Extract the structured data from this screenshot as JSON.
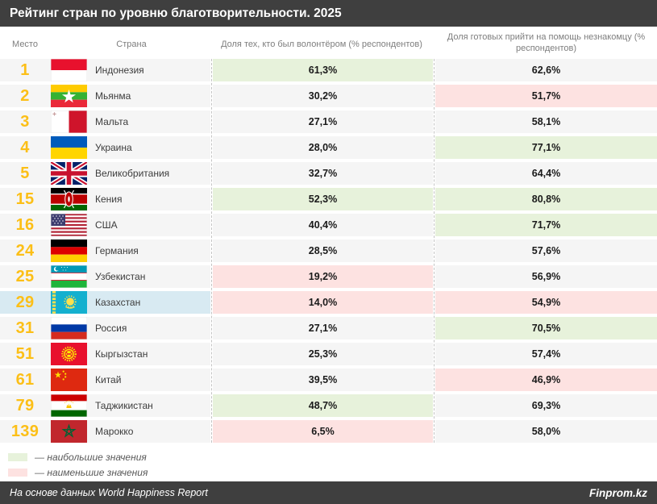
{
  "title": "Рейтинг стран по уровню благотворительности. 2025",
  "columns": {
    "rank": "Место",
    "country": "Страна",
    "volunteer": "Доля тех, кто был волонтёром (% респондентов)",
    "help": "Доля готовых прийти на помощь незнакомцу (% респондентов)"
  },
  "table": {
    "rows": [
      {
        "rank": "1",
        "country": "Индонезия",
        "flag": "indonesia",
        "volunteer": "61,3%",
        "volunteer_class": "high",
        "help": "62,6%",
        "help_class": "none",
        "highlight": false
      },
      {
        "rank": "2",
        "country": "Мьянма",
        "flag": "myanmar",
        "volunteer": "30,2%",
        "volunteer_class": "none",
        "help": "51,7%",
        "help_class": "low",
        "highlight": false
      },
      {
        "rank": "3",
        "country": "Мальта",
        "flag": "malta",
        "volunteer": "27,1%",
        "volunteer_class": "none",
        "help": "58,1%",
        "help_class": "none",
        "highlight": false
      },
      {
        "rank": "4",
        "country": "Украина",
        "flag": "ukraine",
        "volunteer": "28,0%",
        "volunteer_class": "none",
        "help": "77,1%",
        "help_class": "high",
        "highlight": false
      },
      {
        "rank": "5",
        "country": "Великобритания",
        "flag": "uk",
        "volunteer": "32,7%",
        "volunteer_class": "none",
        "help": "64,4%",
        "help_class": "none",
        "highlight": false
      },
      {
        "rank": "15",
        "country": "Кения",
        "flag": "kenya",
        "volunteer": "52,3%",
        "volunteer_class": "high",
        "help": "80,8%",
        "help_class": "high",
        "highlight": false
      },
      {
        "rank": "16",
        "country": "США",
        "flag": "usa",
        "volunteer": "40,4%",
        "volunteer_class": "none",
        "help": "71,7%",
        "help_class": "high",
        "highlight": false
      },
      {
        "rank": "24",
        "country": "Германия",
        "flag": "germany",
        "volunteer": "28,5%",
        "volunteer_class": "none",
        "help": "57,6%",
        "help_class": "none",
        "highlight": false
      },
      {
        "rank": "25",
        "country": "Узбекистан",
        "flag": "uzbekistan",
        "volunteer": "19,2%",
        "volunteer_class": "low",
        "help": "56,9%",
        "help_class": "none",
        "highlight": false
      },
      {
        "rank": "29",
        "country": "Казахстан",
        "flag": "kazakhstan",
        "volunteer": "14,0%",
        "volunteer_class": "low",
        "help": "54,9%",
        "help_class": "low",
        "highlight": true
      },
      {
        "rank": "31",
        "country": "Россия",
        "flag": "russia",
        "volunteer": "27,1%",
        "volunteer_class": "none",
        "help": "70,5%",
        "help_class": "high",
        "highlight": false
      },
      {
        "rank": "51",
        "country": "Кыргызстан",
        "flag": "kyrgyzstan",
        "volunteer": "25,3%",
        "volunteer_class": "none",
        "help": "57,4%",
        "help_class": "none",
        "highlight": false
      },
      {
        "rank": "61",
        "country": "Китай",
        "flag": "china",
        "volunteer": "39,5%",
        "volunteer_class": "none",
        "help": "46,9%",
        "help_class": "low",
        "highlight": false
      },
      {
        "rank": "79",
        "country": "Таджикистан",
        "flag": "tajikistan",
        "volunteer": "48,7%",
        "volunteer_class": "high",
        "help": "69,3%",
        "help_class": "none",
        "highlight": false
      },
      {
        "rank": "139",
        "country": "Марокко",
        "flag": "morocco",
        "volunteer": "6,5%",
        "volunteer_class": "low",
        "help": "58,0%",
        "help_class": "none",
        "highlight": false
      }
    ]
  },
  "legend": [
    {
      "type": "high",
      "label": "— наибольшие значения"
    },
    {
      "type": "low",
      "label": "— наименьшие значения"
    }
  ],
  "footer": {
    "source": "На основе данных World Happiness Report",
    "brand": "Finprom.kz"
  },
  "colors": {
    "header_bg": "#3f3f3f",
    "row_bg": "#f5f5f5",
    "high_bg": "#e7f2db",
    "low_bg": "#fde2e1",
    "highlight_bg": "#d8eaf2",
    "rank_color": "#fcbf17"
  },
  "chart_data": {
    "type": "table",
    "title": "Рейтинг стран по уровню благотворительности. 2025",
    "columns": [
      "Место",
      "Страна",
      "Доля тех, кто был волонтёром (% респондентов)",
      "Доля готовых прийти на помощь незнакомцу (% респондентов)"
    ],
    "rows": [
      [
        1,
        "Индонезия",
        61.3,
        62.6
      ],
      [
        2,
        "Мьянма",
        30.2,
        51.7
      ],
      [
        3,
        "Мальта",
        27.1,
        58.1
      ],
      [
        4,
        "Украина",
        28.0,
        77.1
      ],
      [
        5,
        "Великобритания",
        32.7,
        64.4
      ],
      [
        15,
        "Кения",
        52.3,
        80.8
      ],
      [
        16,
        "США",
        40.4,
        71.7
      ],
      [
        24,
        "Германия",
        28.5,
        57.6
      ],
      [
        25,
        "Узбекистан",
        19.2,
        56.9
      ],
      [
        29,
        "Казахстан",
        14.0,
        54.9
      ],
      [
        31,
        "Россия",
        27.1,
        70.5
      ],
      [
        51,
        "Кыргызстан",
        25.3,
        57.4
      ],
      [
        61,
        "Китай",
        39.5,
        46.9
      ],
      [
        79,
        "Таджикистан",
        48.7,
        69.3
      ],
      [
        139,
        "Марокко",
        6.5,
        58.0
      ]
    ],
    "highlighted_row": "Казахстан",
    "highlight_green": "наибольшие значения",
    "highlight_pink": "наименьшие значения",
    "source": "На основе данных World Happiness Report",
    "brand": "Finprom.kz"
  }
}
